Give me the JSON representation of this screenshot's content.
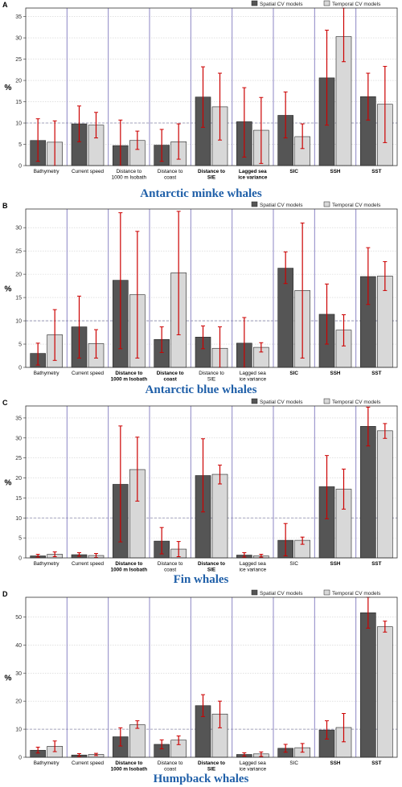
{
  "colors": {
    "spatial": "#555555",
    "temporal": "#d8d8d8",
    "error_bar": "#cc0000",
    "separator": "#8c86c4",
    "reference_line": "#8888aa",
    "title": "#1f5fa8"
  },
  "legend": {
    "spatial": "Spatial CV models",
    "temporal": "Temporal CV models"
  },
  "chart_data": [
    {
      "type": "bar",
      "panel": "A",
      "title": "Antarctic minke whales",
      "ylabel": "%",
      "ylim": [
        0,
        37
      ],
      "yticks": [
        0,
        5,
        10,
        15,
        20,
        25,
        30,
        35
      ],
      "reference_line": 10,
      "grid": "horizontal dotted",
      "legend_position": "top-right",
      "categories": [
        {
          "label": [
            "Bathymetry"
          ],
          "bold": false
        },
        {
          "label": [
            "Current speed"
          ],
          "bold": false
        },
        {
          "label": [
            "Distance to",
            "1000 m Isobath"
          ],
          "bold": false
        },
        {
          "label": [
            "Distance to",
            "coast"
          ],
          "bold": false
        },
        {
          "label": [
            "Distance to",
            "SIE"
          ],
          "bold": true
        },
        {
          "label": [
            "Lagged sea",
            "ice variance"
          ],
          "bold": true
        },
        {
          "label": [
            "SIC"
          ],
          "bold": true
        },
        {
          "label": [
            "SSH"
          ],
          "bold": true
        },
        {
          "label": [
            "SST"
          ],
          "bold": true
        }
      ],
      "series": [
        {
          "name": "Spatial CV models",
          "values": [
            5.9,
            9.8,
            4.7,
            4.8,
            16.1,
            10.3,
            11.8,
            20.6,
            16.2
          ],
          "err_low": [
            1.0,
            5.6,
            0.0,
            1.0,
            9.0,
            2.0,
            6.5,
            9.5,
            10.7
          ],
          "err_high": [
            11.0,
            14.0,
            10.7,
            8.5,
            23.2,
            18.3,
            17.3,
            31.8,
            21.7
          ]
        },
        {
          "name": "Temporal CV models",
          "values": [
            5.5,
            9.5,
            5.9,
            5.6,
            13.8,
            8.3,
            6.8,
            30.3,
            14.4
          ],
          "err_low": [
            0.0,
            6.5,
            3.8,
            1.5,
            6.0,
            0.5,
            4.0,
            24.4,
            5.4
          ],
          "err_high": [
            10.5,
            12.5,
            8.1,
            9.8,
            21.7,
            16.0,
            9.8,
            37.0,
            23.3
          ]
        }
      ]
    },
    {
      "type": "bar",
      "panel": "B",
      "title": "Antarctic blue whales",
      "ylabel": "%",
      "ylim": [
        0,
        34
      ],
      "yticks": [
        0,
        5,
        10,
        15,
        20,
        25,
        30
      ],
      "reference_line": 10,
      "grid": "horizontal dotted",
      "legend_position": "top-right",
      "categories": [
        {
          "label": [
            "Bathymetry"
          ],
          "bold": false
        },
        {
          "label": [
            "Current speed"
          ],
          "bold": false
        },
        {
          "label": [
            "Distance to",
            "1000 m Isobath"
          ],
          "bold": true
        },
        {
          "label": [
            "Distance to",
            "coast"
          ],
          "bold": true
        },
        {
          "label": [
            "Distance to",
            "SIE"
          ],
          "bold": false
        },
        {
          "label": [
            "Lagged sea",
            "ice variance"
          ],
          "bold": false
        },
        {
          "label": [
            "SIC"
          ],
          "bold": true
        },
        {
          "label": [
            "SSH"
          ],
          "bold": true
        },
        {
          "label": [
            "SST"
          ],
          "bold": true
        }
      ],
      "series": [
        {
          "name": "Spatial CV models",
          "values": [
            3.0,
            8.7,
            18.7,
            6.0,
            6.5,
            5.2,
            21.3,
            11.4,
            19.5
          ],
          "err_low": [
            0.5,
            2.0,
            4.0,
            3.2,
            4.0,
            0.0,
            18.0,
            5.0,
            13.5
          ],
          "err_high": [
            5.2,
            15.3,
            33.2,
            8.7,
            8.9,
            10.7,
            24.8,
            17.9,
            25.7
          ]
        },
        {
          "name": "Temporal CV models",
          "values": [
            7.0,
            5.1,
            15.6,
            20.3,
            4.1,
            4.3,
            16.5,
            8.0,
            19.6
          ],
          "err_low": [
            1.5,
            2.0,
            2.0,
            7.0,
            0.0,
            3.3,
            2.0,
            4.6,
            16.5
          ],
          "err_high": [
            12.4,
            8.1,
            29.2,
            33.5,
            8.7,
            5.3,
            31.0,
            11.3,
            22.7
          ]
        }
      ]
    },
    {
      "type": "bar",
      "panel": "C",
      "title": "Fin whales",
      "ylabel": "%",
      "ylim": [
        0,
        38
      ],
      "yticks": [
        0,
        5,
        10,
        15,
        20,
        25,
        30,
        35
      ],
      "reference_line": 10,
      "grid": "horizontal dotted",
      "legend_position": "top-right",
      "categories": [
        {
          "label": [
            "Bathymetry"
          ],
          "bold": false
        },
        {
          "label": [
            "Current speed"
          ],
          "bold": false
        },
        {
          "label": [
            "Distance to",
            "1000 m Isobath"
          ],
          "bold": true
        },
        {
          "label": [
            "Distance to",
            "coast"
          ],
          "bold": false
        },
        {
          "label": [
            "Distance to",
            "SIE"
          ],
          "bold": true
        },
        {
          "label": [
            "Lagged sea",
            "ice variance"
          ],
          "bold": false
        },
        {
          "label": [
            "SIC"
          ],
          "bold": false
        },
        {
          "label": [
            "SSH"
          ],
          "bold": true
        },
        {
          "label": [
            "SST"
          ],
          "bold": true
        }
      ],
      "series": [
        {
          "name": "Spatial CV models",
          "values": [
            0.5,
            0.8,
            18.4,
            4.2,
            20.6,
            0.7,
            4.4,
            17.8,
            32.9
          ],
          "err_low": [
            0.2,
            0.4,
            4.0,
            1.0,
            11.5,
            0.2,
            0.5,
            9.8,
            28.0
          ],
          "err_high": [
            0.9,
            1.3,
            33.0,
            7.6,
            29.8,
            1.3,
            8.6,
            25.6,
            37.7
          ]
        },
        {
          "name": "Temporal CV models",
          "values": [
            0.9,
            0.6,
            22.1,
            2.2,
            20.9,
            0.5,
            4.4,
            17.2,
            31.8
          ],
          "err_low": [
            0.3,
            0.1,
            14.2,
            0.3,
            18.5,
            0.2,
            3.4,
            12.2,
            29.9
          ],
          "err_high": [
            1.5,
            1.1,
            30.2,
            4.1,
            23.2,
            0.9,
            5.2,
            22.2,
            33.6
          ]
        }
      ]
    },
    {
      "type": "bar",
      "panel": "D",
      "title": "Humpback whales",
      "ylabel": "%",
      "ylim": [
        0,
        57
      ],
      "yticks": [
        0,
        10,
        20,
        30,
        40,
        50
      ],
      "reference_line": 10,
      "grid": "horizontal dotted",
      "legend_position": "top-right",
      "categories": [
        {
          "label": [
            "Bathymetry"
          ],
          "bold": false
        },
        {
          "label": [
            "Current speed"
          ],
          "bold": false
        },
        {
          "label": [
            "Distance to",
            "1000 m Isobath"
          ],
          "bold": true
        },
        {
          "label": [
            "Distance to",
            "coast"
          ],
          "bold": false
        },
        {
          "label": [
            "Distance to",
            "SIE"
          ],
          "bold": true
        },
        {
          "label": [
            "Lagged sea",
            "ice variance"
          ],
          "bold": false
        },
        {
          "label": [
            "SIC"
          ],
          "bold": false
        },
        {
          "label": [
            "SSH"
          ],
          "bold": true
        },
        {
          "label": [
            "SST"
          ],
          "bold": true
        }
      ],
      "series": [
        {
          "name": "Spatial CV models",
          "values": [
            2.5,
            0.8,
            7.3,
            4.6,
            18.4,
            1.0,
            3.2,
            9.7,
            51.5
          ],
          "err_low": [
            1.5,
            0.3,
            4.0,
            3.0,
            14.5,
            0.4,
            1.8,
            6.5,
            46.0
          ],
          "err_high": [
            3.6,
            1.3,
            10.5,
            6.2,
            22.3,
            1.6,
            4.6,
            13.0,
            57.0
          ]
        },
        {
          "name": "Temporal CV models",
          "values": [
            3.9,
            1.0,
            11.6,
            6.1,
            15.4,
            1.2,
            3.4,
            10.6,
            46.5
          ],
          "err_low": [
            2.0,
            0.6,
            10.3,
            4.5,
            10.5,
            0.3,
            1.8,
            5.5,
            44.6
          ],
          "err_high": [
            5.8,
            1.4,
            13.0,
            7.6,
            20.0,
            1.9,
            4.9,
            15.6,
            48.5
          ]
        }
      ]
    }
  ]
}
